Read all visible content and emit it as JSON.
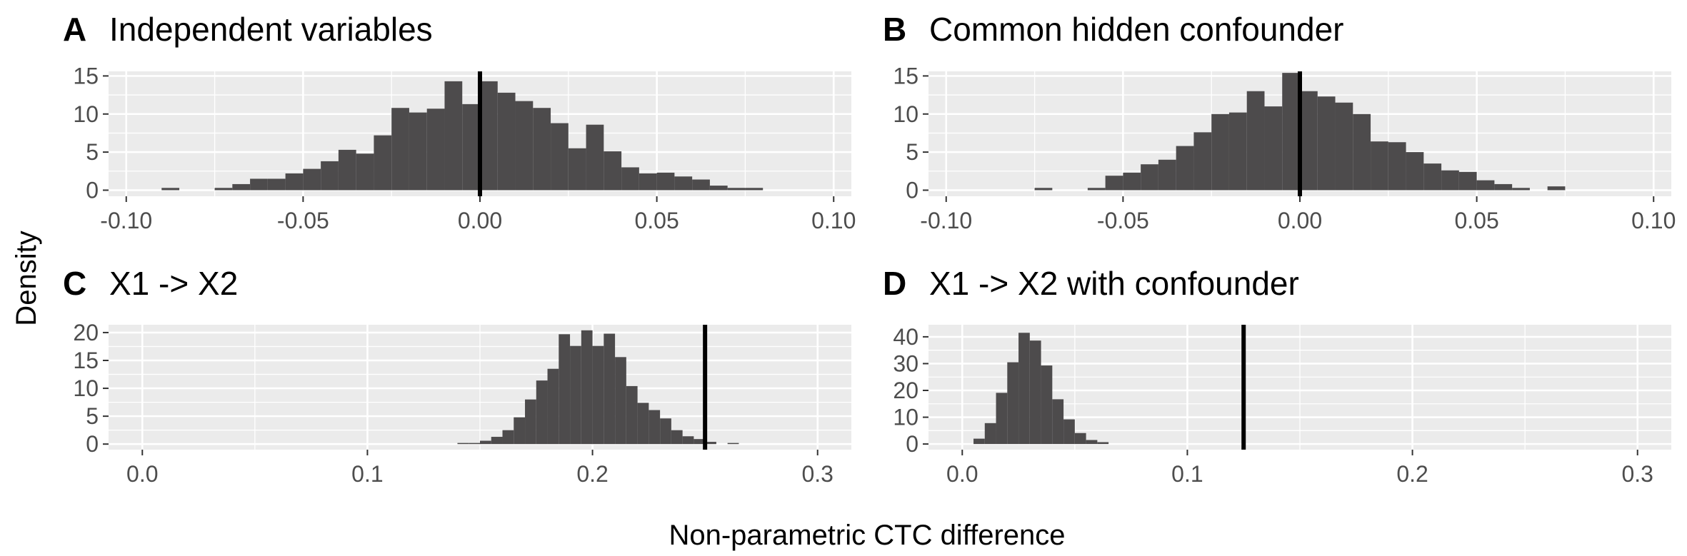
{
  "figure": {
    "ylabel": "Density",
    "xlabel": "Non-parametric CTC difference",
    "colors": {
      "panel_bg": "#ebebeb",
      "grid": "#ffffff",
      "bar": "#4d4b4c",
      "vline": "#000000",
      "text": "#000000",
      "tick_text": "#4d4d4d"
    }
  },
  "chart_data": [
    {
      "type": "bar",
      "letter": "A",
      "title": "Independent variables",
      "xlim": [
        -0.105,
        0.105
      ],
      "ylim": [
        -0.8,
        15.6
      ],
      "x_ticks": [
        -0.1,
        -0.05,
        0.0,
        0.05,
        0.1
      ],
      "x_tick_labels": [
        "-0.10",
        "-0.05",
        "0.00",
        "0.05",
        "0.10"
      ],
      "y_ticks": [
        0,
        5,
        10,
        15
      ],
      "y_tick_labels": [
        "0",
        "5",
        "10",
        "15"
      ],
      "vline": 0.0,
      "bin_start": -0.1,
      "bin_width": 0.005,
      "counts": [
        0,
        0,
        0.3,
        0,
        0,
        0.3,
        0.8,
        1.5,
        1.5,
        2.2,
        2.8,
        3.8,
        5.3,
        4.8,
        7.2,
        10.8,
        10.2,
        10.7,
        14.3,
        11.3,
        14.3,
        12.8,
        11.7,
        10.8,
        8.8,
        5.5,
        8.6,
        5.1,
        3.0,
        2.2,
        2.3,
        1.8,
        1.4,
        0.6,
        0.3,
        0.3,
        0
      ]
    },
    {
      "type": "bar",
      "letter": "B",
      "title": "Common hidden confounder",
      "xlim": [
        -0.105,
        0.105
      ],
      "ylim": [
        -0.8,
        15.6
      ],
      "x_ticks": [
        -0.1,
        -0.05,
        0.0,
        0.05,
        0.1
      ],
      "x_tick_labels": [
        "-0.10",
        "-0.05",
        "0.00",
        "0.05",
        "0.10"
      ],
      "y_ticks": [
        0,
        5,
        10,
        15
      ],
      "y_tick_labels": [
        "0",
        "5",
        "10",
        "15"
      ],
      "vline": 0.0,
      "bin_start": -0.1,
      "bin_width": 0.005,
      "counts": [
        0,
        0,
        0,
        0,
        0,
        0.3,
        0,
        0,
        0.3,
        1.9,
        2.3,
        3.4,
        4.0,
        5.8,
        7.6,
        10.0,
        10.2,
        13.0,
        11.0,
        15.4,
        13.0,
        12.3,
        11.5,
        10.0,
        6.4,
        6.3,
        5.0,
        3.5,
        2.6,
        2.4,
        1.3,
        0.8,
        0.3,
        0,
        0.5,
        0,
        0
      ]
    },
    {
      "type": "bar",
      "letter": "C",
      "title": "X1 -> X2",
      "xlim": [
        -0.015,
        0.315
      ],
      "ylim": [
        -1.0,
        21.4
      ],
      "x_ticks": [
        0.0,
        0.1,
        0.2,
        0.3
      ],
      "x_tick_labels": [
        "0.0",
        "0.1",
        "0.2",
        "0.3"
      ],
      "y_ticks": [
        0,
        5,
        10,
        15,
        20
      ],
      "y_tick_labels": [
        "0",
        "5",
        "10",
        "15",
        "20"
      ],
      "vline": 0.25,
      "bin_start": 0.14,
      "bin_width": 0.005,
      "counts": [
        0.2,
        0.2,
        0.6,
        1.3,
        2.5,
        4.8,
        8.0,
        11.4,
        13.5,
        19.7,
        17.6,
        20.4,
        17.6,
        19.8,
        15.6,
        10.4,
        7.4,
        6.1,
        4.6,
        2.5,
        1.4,
        0.9,
        0.4,
        0,
        0.2
      ]
    },
    {
      "type": "bar",
      "letter": "D",
      "title": "X1 -> X2 with confounder",
      "xlim": [
        -0.015,
        0.315
      ],
      "ylim": [
        -2.1,
        44.5
      ],
      "x_ticks": [
        0.0,
        0.1,
        0.2,
        0.3
      ],
      "x_tick_labels": [
        "0.0",
        "0.1",
        "0.2",
        "0.3"
      ],
      "y_ticks": [
        0,
        10,
        20,
        30,
        40
      ],
      "y_tick_labels": [
        "0",
        "10",
        "20",
        "30",
        "40"
      ],
      "vline": 0.125,
      "bin_start": 0.005,
      "bin_width": 0.005,
      "counts": [
        2.0,
        7.8,
        19.1,
        30.5,
        41.5,
        38.6,
        29.3,
        16.7,
        9.2,
        4.1,
        1.5,
        0.7
      ]
    }
  ]
}
